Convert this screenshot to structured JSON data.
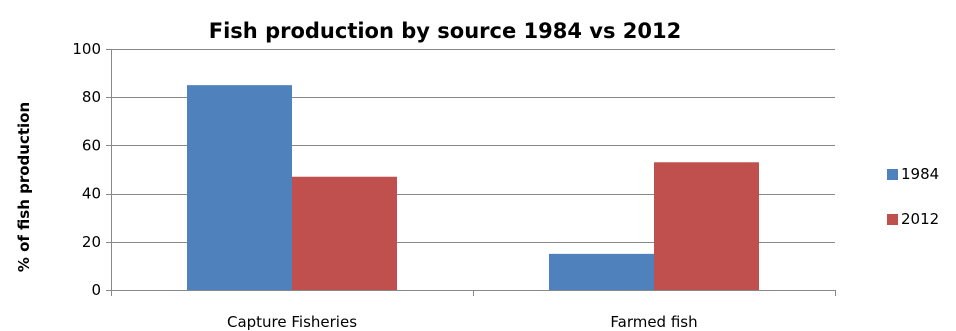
{
  "chart_data": {
    "type": "bar",
    "title": "Fish production by source 1984 vs 2012",
    "xlabel": "",
    "ylabel": "% of fish production",
    "categories": [
      "Capture Fisheries",
      "Farmed fish"
    ],
    "series": [
      {
        "name": "1984",
        "values": [
          85,
          15
        ],
        "color": "#4f81bd"
      },
      {
        "name": "2012",
        "values": [
          47,
          53
        ],
        "color": "#c0504d"
      }
    ],
    "ylim": [
      0,
      100
    ],
    "yticks": [
      0,
      20,
      40,
      60,
      80,
      100
    ],
    "ytick_labels": [
      "0",
      "20",
      "40",
      "60",
      "80",
      "100"
    ],
    "grid": true,
    "legend_position": "right"
  }
}
